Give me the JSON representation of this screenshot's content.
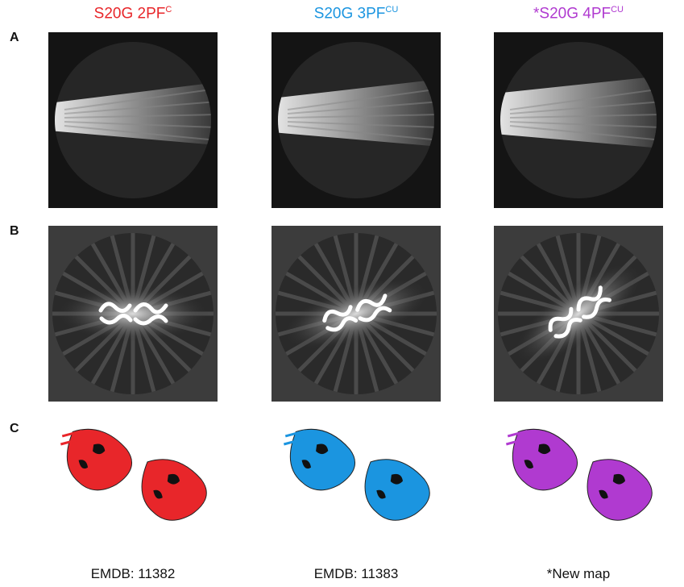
{
  "panel_labels": [
    "A",
    "B",
    "C"
  ],
  "columns": [
    {
      "title": "S20G 2PF",
      "title_sup": "C",
      "caption": "EMDB: 11382",
      "color": "#e8262a"
    },
    {
      "title": "S20G 3PF",
      "title_sup": "CU",
      "caption": "EMDB: 11383",
      "color": "#1b95e0"
    },
    {
      "title": "*S20G 4PF",
      "title_sup": "CU",
      "caption": "*New map",
      "color": "#b03ad0"
    }
  ]
}
